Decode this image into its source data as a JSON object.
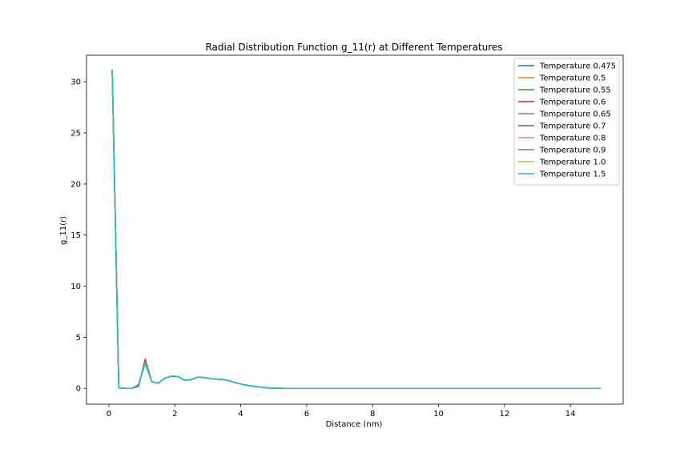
{
  "chart_data": {
    "type": "line",
    "title": "Radial Distribution Function g_11(r) at Different Temperatures",
    "xlabel": "Distance (nm)",
    "ylabel": "g_11(r)",
    "xlim": [
      -0.68,
      15.6
    ],
    "ylim": [
      -1.55,
      32.6
    ],
    "xticks": [
      0,
      2,
      4,
      6,
      8,
      10,
      12,
      14
    ],
    "yticks": [
      0,
      5,
      10,
      15,
      20,
      25,
      30
    ],
    "grid": false,
    "legend_position": "top-right",
    "x": [
      0.1,
      0.3,
      0.5,
      0.7,
      0.9,
      1.1,
      1.3,
      1.5,
      1.7,
      1.9,
      2.1,
      2.3,
      2.5,
      2.7,
      2.9,
      3.1,
      3.3,
      3.5,
      3.7,
      3.9,
      4.1,
      4.3,
      4.5,
      4.7,
      4.9,
      5.1,
      5.3,
      5.5,
      5.7,
      5.9,
      6.1,
      6.3,
      6.5,
      6.7,
      6.9,
      7.1,
      7.3,
      7.5,
      7.7,
      7.9,
      8.1,
      8.3,
      8.5,
      8.7,
      8.9,
      9.1,
      9.3,
      9.5,
      9.7,
      9.9,
      10.1,
      10.3,
      10.5,
      10.7,
      10.9,
      11.1,
      11.3,
      11.5,
      11.7,
      11.9,
      12.1,
      12.3,
      12.5,
      12.7,
      12.9,
      13.1,
      13.3,
      13.5,
      13.7,
      13.9,
      14.1,
      14.3,
      14.5,
      14.7,
      14.9
    ],
    "series": [
      {
        "name": "Temperature 0.475",
        "color": "#1f77b4",
        "values": [
          31.1,
          0.05,
          0.0,
          0.0,
          0.2,
          2.8,
          0.65,
          0.5,
          1.0,
          1.2,
          1.15,
          0.8,
          0.85,
          1.1,
          1.05,
          0.95,
          0.9,
          0.85,
          0.7,
          0.5,
          0.35,
          0.25,
          0.15,
          0.08,
          0.03,
          0.01,
          0,
          0,
          0,
          0,
          0,
          0,
          0,
          0,
          0,
          0,
          0,
          0,
          0,
          0,
          0,
          0,
          0,
          0,
          0,
          0,
          0,
          0,
          0,
          0,
          0,
          0,
          0,
          0,
          0,
          0,
          0,
          0,
          0,
          0,
          0,
          0,
          0,
          0,
          0,
          0,
          0,
          0,
          0,
          0,
          0,
          0,
          0,
          0,
          0
        ]
      },
      {
        "name": "Temperature 0.5",
        "color": "#ff7f0e",
        "values": [
          31.1,
          0.05,
          0.0,
          0.0,
          0.22,
          2.75,
          0.65,
          0.5,
          1.0,
          1.2,
          1.15,
          0.8,
          0.85,
          1.1,
          1.05,
          0.95,
          0.9,
          0.85,
          0.7,
          0.5,
          0.35,
          0.25,
          0.15,
          0.08,
          0.03,
          0.01,
          0,
          0,
          0,
          0,
          0,
          0,
          0,
          0,
          0,
          0,
          0,
          0,
          0,
          0,
          0,
          0,
          0,
          0,
          0,
          0,
          0,
          0,
          0,
          0,
          0,
          0,
          0,
          0,
          0,
          0,
          0,
          0,
          0,
          0,
          0,
          0,
          0,
          0,
          0,
          0,
          0,
          0,
          0,
          0,
          0,
          0,
          0,
          0,
          0
        ]
      },
      {
        "name": "Temperature 0.55",
        "color": "#2ca02c",
        "values": [
          31.1,
          0.05,
          0.0,
          0.0,
          0.25,
          2.7,
          0.65,
          0.5,
          1.0,
          1.2,
          1.15,
          0.8,
          0.85,
          1.1,
          1.05,
          0.95,
          0.9,
          0.85,
          0.7,
          0.5,
          0.35,
          0.25,
          0.15,
          0.08,
          0.03,
          0.01,
          0,
          0,
          0,
          0,
          0,
          0,
          0,
          0,
          0,
          0,
          0,
          0,
          0,
          0,
          0,
          0,
          0,
          0,
          0,
          0,
          0,
          0,
          0,
          0,
          0,
          0,
          0,
          0,
          0,
          0,
          0,
          0,
          0,
          0,
          0,
          0,
          0,
          0,
          0,
          0,
          0,
          0,
          0,
          0,
          0,
          0,
          0,
          0,
          0
        ]
      },
      {
        "name": "Temperature 0.6",
        "color": "#d62728",
        "values": [
          31.1,
          0.05,
          0.0,
          0.0,
          0.2,
          2.85,
          0.65,
          0.5,
          1.0,
          1.2,
          1.15,
          0.8,
          0.85,
          1.1,
          1.05,
          0.95,
          0.9,
          0.85,
          0.7,
          0.5,
          0.35,
          0.25,
          0.15,
          0.08,
          0.03,
          0.01,
          0,
          0,
          0,
          0,
          0,
          0,
          0,
          0,
          0,
          0,
          0,
          0,
          0,
          0,
          0,
          0,
          0,
          0,
          0,
          0,
          0,
          0,
          0,
          0,
          0,
          0,
          0,
          0,
          0,
          0,
          0,
          0,
          0,
          0,
          0,
          0,
          0,
          0,
          0,
          0,
          0,
          0,
          0,
          0,
          0,
          0,
          0,
          0,
          0
        ]
      },
      {
        "name": "Temperature 0.65",
        "color": "#9467bd",
        "values": [
          31.1,
          0.05,
          0.0,
          0.0,
          0.28,
          2.65,
          0.65,
          0.5,
          1.0,
          1.2,
          1.15,
          0.8,
          0.85,
          1.1,
          1.05,
          0.95,
          0.9,
          0.85,
          0.7,
          0.5,
          0.35,
          0.25,
          0.15,
          0.08,
          0.03,
          0.01,
          0,
          0,
          0,
          0,
          0,
          0,
          0,
          0,
          0,
          0,
          0,
          0,
          0,
          0,
          0,
          0,
          0,
          0,
          0,
          0,
          0,
          0,
          0,
          0,
          0,
          0,
          0,
          0,
          0,
          0,
          0,
          0,
          0,
          0,
          0,
          0,
          0,
          0,
          0,
          0,
          0,
          0,
          0,
          0,
          0,
          0,
          0,
          0,
          0
        ]
      },
      {
        "name": "Temperature 0.7",
        "color": "#8c564b",
        "values": [
          31.1,
          0.05,
          0.0,
          0.0,
          0.3,
          2.6,
          0.65,
          0.5,
          1.0,
          1.2,
          1.15,
          0.8,
          0.85,
          1.1,
          1.05,
          0.95,
          0.9,
          0.85,
          0.7,
          0.5,
          0.35,
          0.25,
          0.15,
          0.08,
          0.03,
          0.01,
          0,
          0,
          0,
          0,
          0,
          0,
          0,
          0,
          0,
          0,
          0,
          0,
          0,
          0,
          0,
          0,
          0,
          0,
          0,
          0,
          0,
          0,
          0,
          0,
          0,
          0,
          0,
          0,
          0,
          0,
          0,
          0,
          0,
          0,
          0,
          0,
          0,
          0,
          0,
          0,
          0,
          0,
          0,
          0,
          0,
          0,
          0,
          0,
          0
        ]
      },
      {
        "name": "Temperature 0.8",
        "color": "#e377c2",
        "values": [
          31.1,
          0.05,
          0.0,
          0.0,
          0.32,
          2.55,
          0.65,
          0.5,
          1.0,
          1.2,
          1.15,
          0.8,
          0.85,
          1.1,
          1.05,
          0.95,
          0.9,
          0.85,
          0.7,
          0.5,
          0.35,
          0.25,
          0.15,
          0.08,
          0.03,
          0.01,
          0,
          0,
          0,
          0,
          0,
          0,
          0,
          0,
          0,
          0,
          0,
          0,
          0,
          0,
          0,
          0,
          0,
          0,
          0,
          0,
          0,
          0,
          0,
          0,
          0,
          0,
          0,
          0,
          0,
          0,
          0,
          0,
          0,
          0,
          0,
          0,
          0,
          0,
          0,
          0,
          0,
          0,
          0,
          0,
          0,
          0,
          0,
          0,
          0
        ]
      },
      {
        "name": "Temperature 0.9",
        "color": "#7f7f7f",
        "values": [
          31.1,
          0.05,
          0.0,
          0.0,
          0.35,
          2.5,
          0.65,
          0.5,
          1.0,
          1.2,
          1.15,
          0.8,
          0.85,
          1.1,
          1.05,
          0.95,
          0.9,
          0.85,
          0.7,
          0.5,
          0.35,
          0.25,
          0.15,
          0.08,
          0.03,
          0.01,
          0,
          0,
          0,
          0,
          0,
          0,
          0,
          0,
          0,
          0,
          0,
          0,
          0,
          0,
          0,
          0,
          0,
          0,
          0,
          0,
          0,
          0,
          0,
          0,
          0,
          0,
          0,
          0,
          0,
          0,
          0,
          0,
          0,
          0,
          0,
          0,
          0,
          0,
          0,
          0,
          0,
          0,
          0,
          0,
          0,
          0,
          0,
          0,
          0
        ]
      },
      {
        "name": "Temperature 1.0",
        "color": "#bcbd22",
        "values": [
          31.1,
          0.05,
          0.0,
          0.0,
          0.38,
          2.45,
          0.65,
          0.5,
          1.0,
          1.2,
          1.15,
          0.8,
          0.85,
          1.1,
          1.05,
          0.95,
          0.9,
          0.85,
          0.7,
          0.5,
          0.35,
          0.25,
          0.15,
          0.08,
          0.03,
          0.01,
          0,
          0,
          0,
          0,
          0,
          0,
          0,
          0,
          0,
          0,
          0,
          0,
          0,
          0,
          0,
          0,
          0,
          0,
          0,
          0,
          0,
          0,
          0,
          0,
          0,
          0,
          0,
          0,
          0,
          0,
          0,
          0,
          0,
          0,
          0,
          0,
          0,
          0,
          0,
          0,
          0,
          0,
          0,
          0,
          0,
          0,
          0,
          0,
          0
        ]
      },
      {
        "name": "Temperature 1.5",
        "color": "#17becf",
        "values": [
          31.0,
          0.05,
          0.0,
          0.0,
          0.4,
          2.45,
          0.65,
          0.5,
          1.0,
          1.2,
          1.15,
          0.8,
          0.85,
          1.1,
          1.05,
          0.95,
          0.9,
          0.85,
          0.7,
          0.5,
          0.35,
          0.25,
          0.15,
          0.08,
          0.03,
          0.01,
          0,
          0,
          0,
          0,
          0,
          0,
          0,
          0,
          0,
          0,
          0,
          0,
          0,
          0,
          0,
          0,
          0,
          0,
          0,
          0,
          0,
          0,
          0,
          0,
          0,
          0,
          0,
          0,
          0,
          0,
          0,
          0,
          0,
          0,
          0,
          0,
          0,
          0,
          0,
          0,
          0,
          0,
          0,
          0,
          0,
          0,
          0,
          0,
          0
        ]
      }
    ]
  }
}
